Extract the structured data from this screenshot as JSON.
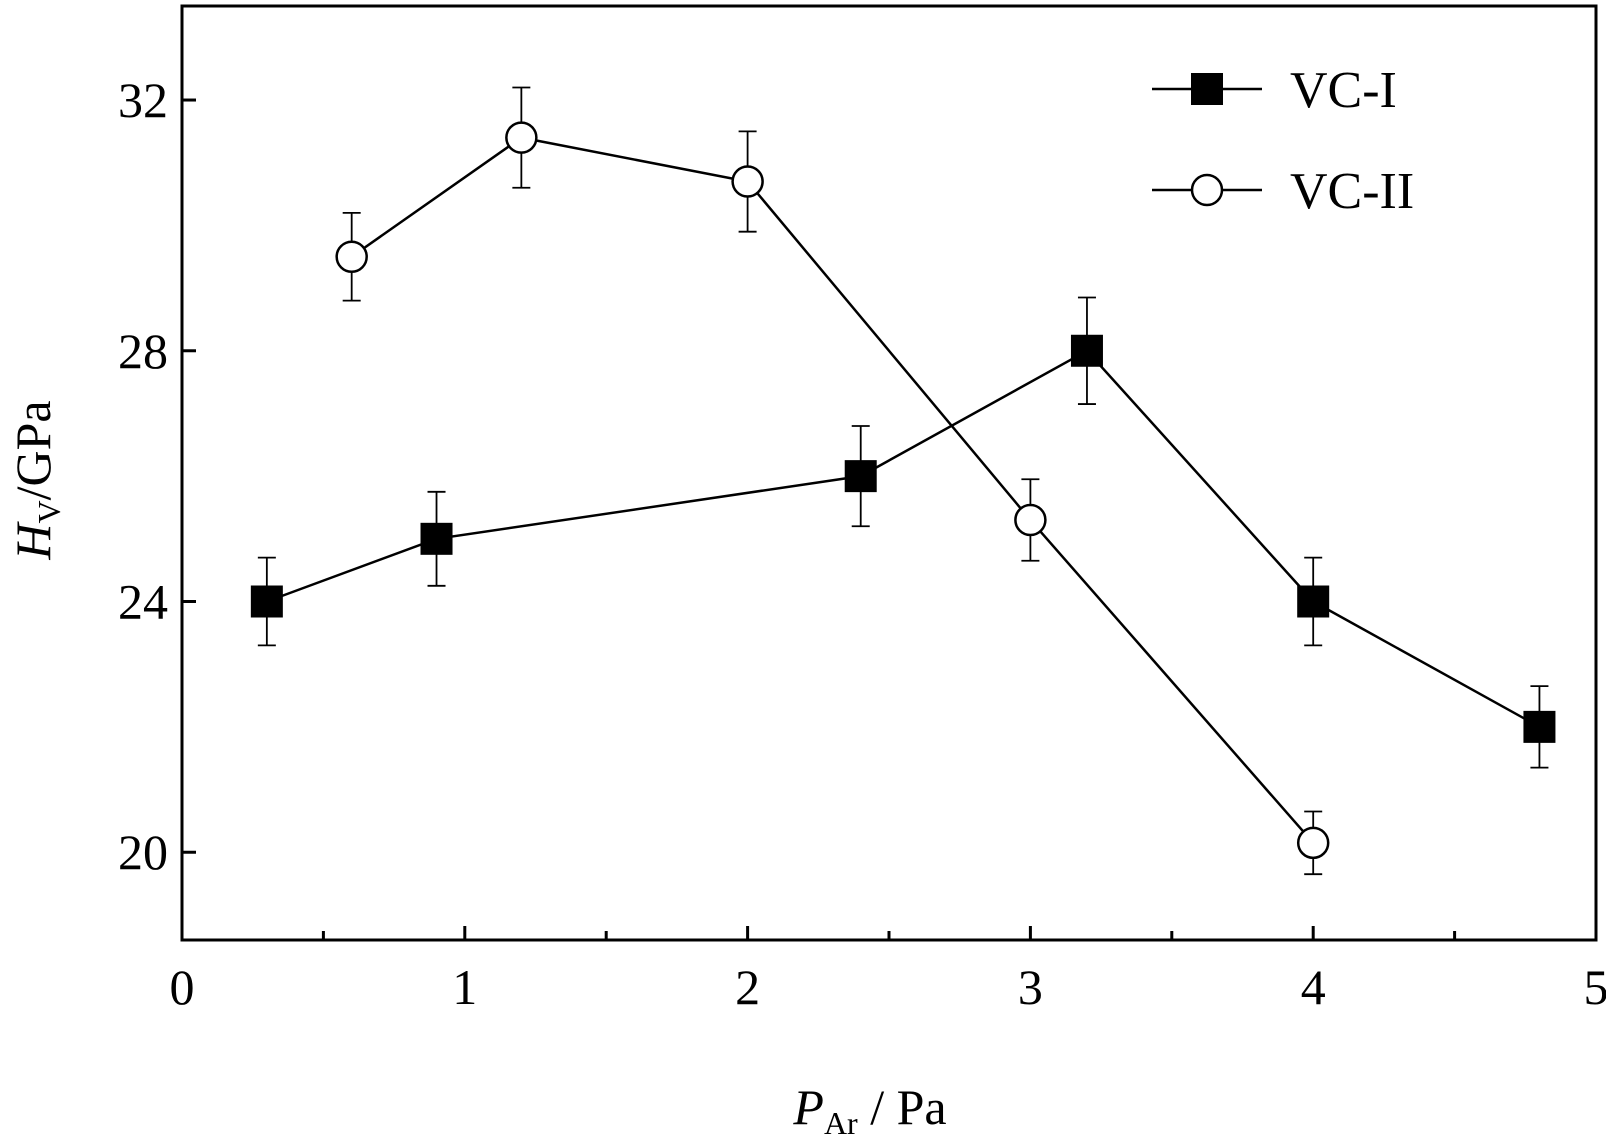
{
  "chart_data": {
    "type": "line",
    "xlabel_main": "P",
    "xlabel_sub": "Ar",
    "xlabel_unit": " / Pa",
    "ylabel_main": "H",
    "ylabel_sub": "V",
    "ylabel_unit": "/GPa",
    "xlim": [
      0,
      5
    ],
    "ylim": [
      18.6,
      33.5
    ],
    "x_major_ticks": [
      0,
      1,
      2,
      3,
      4,
      5
    ],
    "x_minor_ticks": [
      0.5,
      1.5,
      2.5,
      3.5,
      4.5
    ],
    "y_ticks": [
      20,
      24,
      28,
      32
    ],
    "grid": false,
    "legend_position": "top-right",
    "series": [
      {
        "name": "VC-I",
        "marker": "filled-square",
        "color": "#000000",
        "x": [
          0.3,
          0.9,
          2.4,
          3.2,
          4.0,
          4.8
        ],
        "y": [
          24.0,
          25.0,
          26.0,
          28.0,
          24.0,
          22.0
        ],
        "err": [
          0.7,
          0.75,
          0.8,
          0.85,
          0.7,
          0.65
        ]
      },
      {
        "name": "VC-II",
        "marker": "open-circle",
        "color": "#000000",
        "x": [
          0.6,
          1.2,
          2.0,
          3.0,
          4.0
        ],
        "y": [
          29.5,
          31.4,
          30.7,
          25.3,
          20.15
        ],
        "err": [
          0.7,
          0.8,
          0.8,
          0.65,
          0.5
        ]
      }
    ]
  }
}
